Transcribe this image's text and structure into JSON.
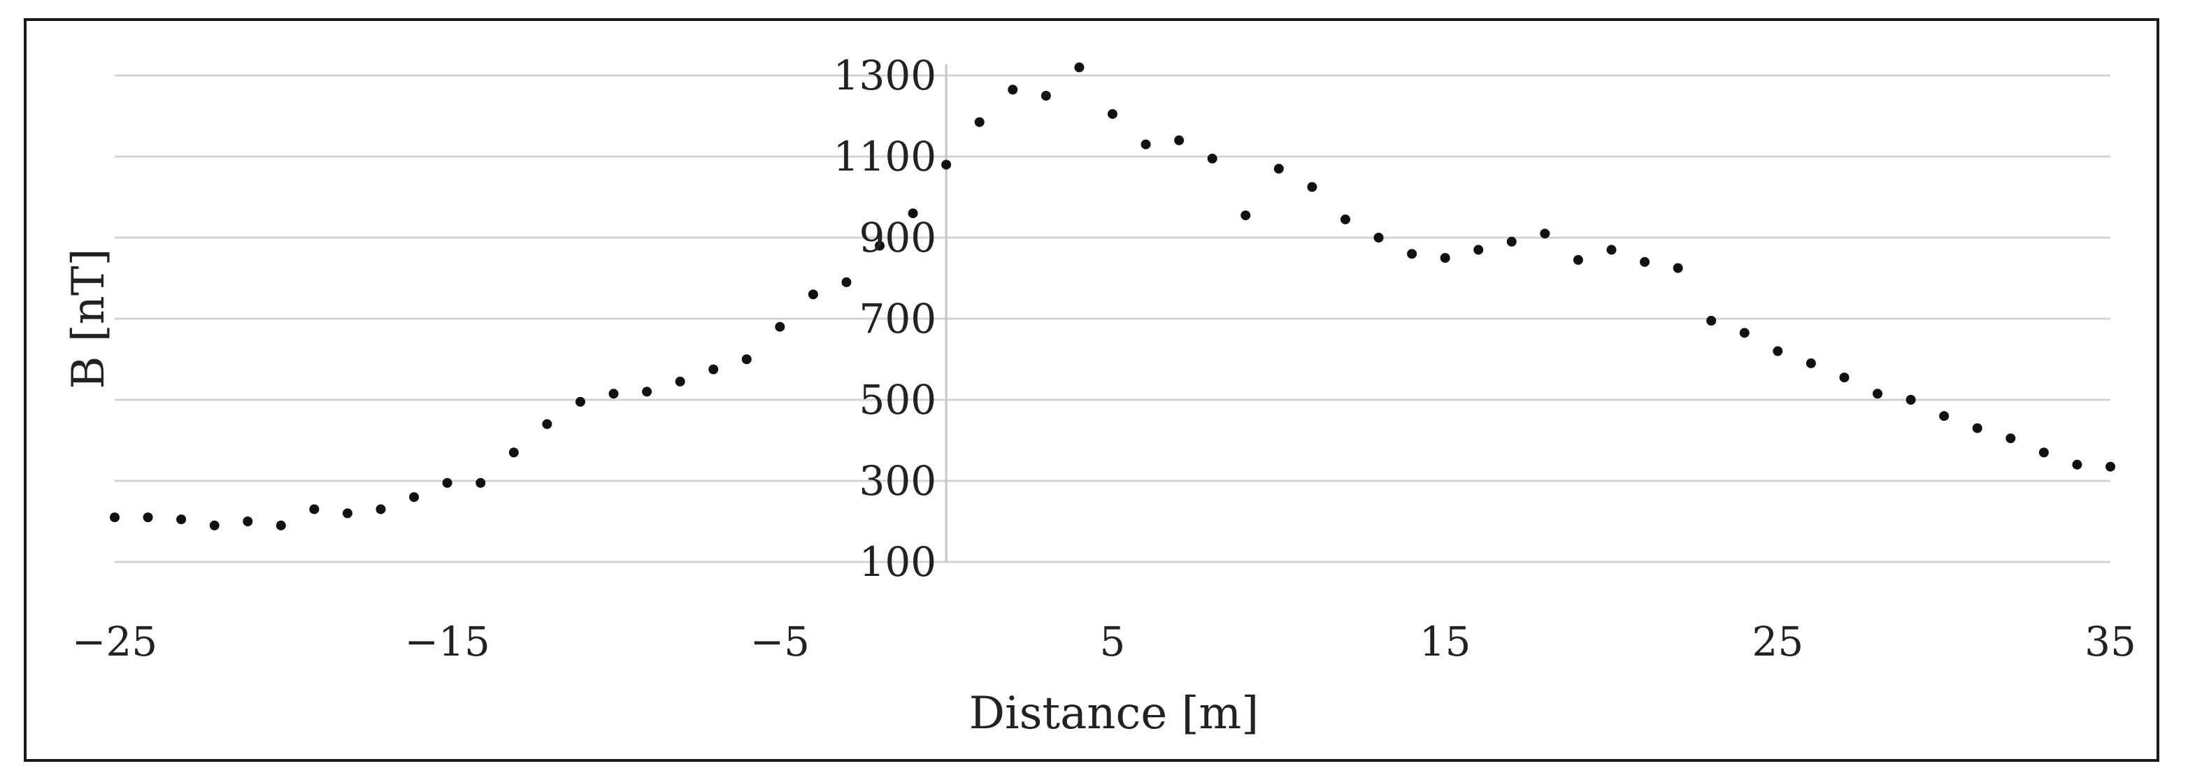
{
  "chart_data": {
    "type": "scatter",
    "title": "",
    "xlabel": "Distance [m]",
    "ylabel": "B [nT]",
    "xlim": [
      -25,
      35
    ],
    "ylim": [
      100,
      1300
    ],
    "x_ticks": [
      -25,
      -15,
      -5,
      5,
      15,
      25,
      35
    ],
    "y_ticks": [
      100,
      300,
      500,
      700,
      900,
      1100,
      1300
    ],
    "x_tick_labels": [
      "−25",
      "−15",
      "−5",
      "5",
      "15",
      "25",
      "35"
    ],
    "y_tick_labels": [
      "100",
      "300",
      "500",
      "700",
      "900",
      "1100",
      "1300"
    ],
    "grid": "horizontal",
    "legend": "none",
    "marker_color": "#111111",
    "series": [
      {
        "x": [
          -25,
          -24,
          -23,
          -22,
          -21,
          -20,
          -19,
          -18,
          -17,
          -16,
          -15,
          -14,
          -13,
          -12,
          -11,
          -10,
          -9,
          -8,
          -7,
          -6,
          -5,
          -4,
          -3,
          -2,
          -1,
          0,
          1,
          2,
          3,
          4,
          5,
          6,
          7,
          8,
          9,
          10,
          11,
          12,
          13,
          14,
          15,
          16,
          17,
          18,
          19,
          20,
          21,
          22,
          23,
          24,
          25,
          26,
          27,
          28,
          29,
          30,
          31,
          32,
          33,
          34,
          35
        ],
        "y": [
          210,
          210,
          205,
          190,
          200,
          190,
          230,
          220,
          230,
          260,
          295,
          295,
          370,
          440,
          495,
          515,
          520,
          545,
          575,
          600,
          680,
          760,
          790,
          880,
          960,
          1080,
          1185,
          1265,
          1250,
          1320,
          1205,
          1130,
          1140,
          1095,
          955,
          1070,
          1025,
          945,
          900,
          860,
          850,
          870,
          890,
          910,
          845,
          870,
          840,
          825,
          695,
          665,
          620,
          590,
          555,
          515,
          500,
          460,
          430,
          405,
          370,
          340,
          335
        ]
      }
    ]
  }
}
